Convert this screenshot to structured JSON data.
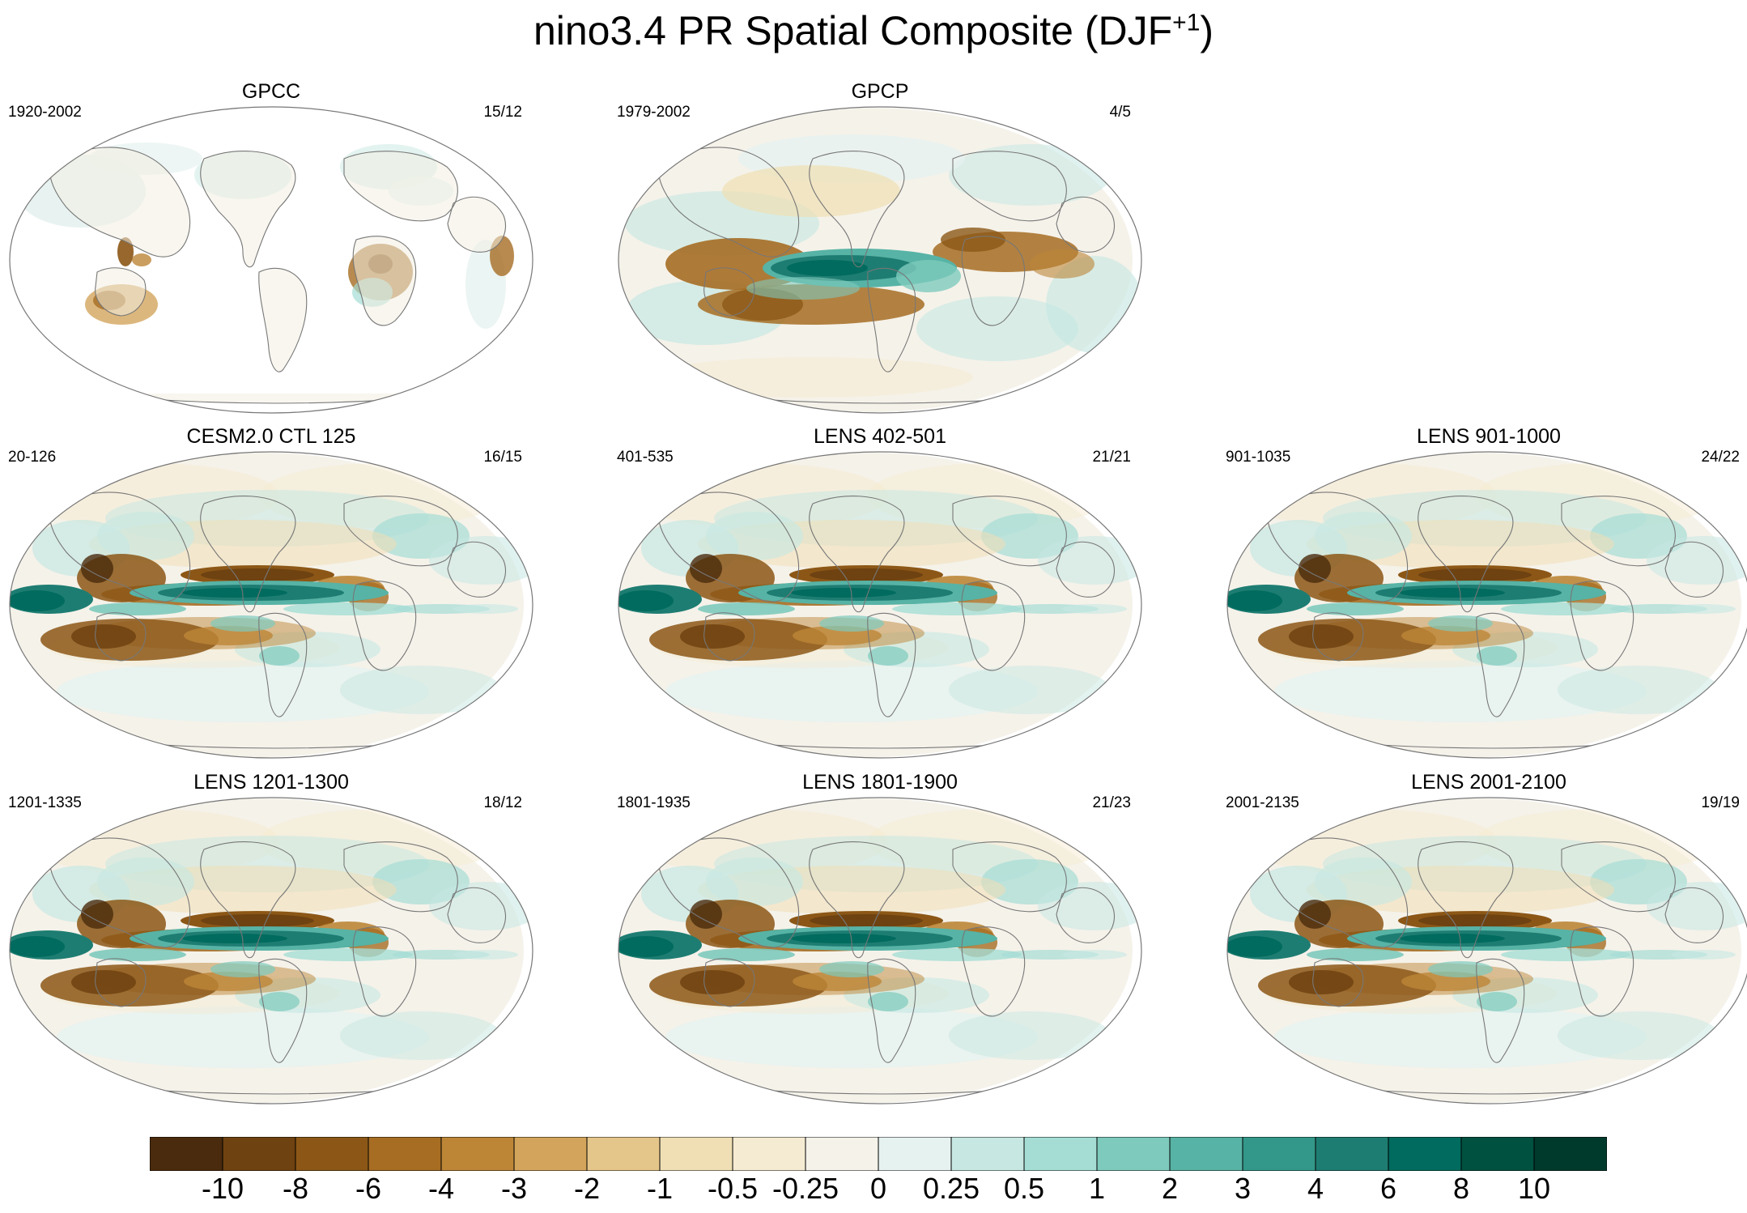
{
  "title": {
    "main": "nino3.4 PR Spatial Composite (DJF",
    "sup": "+1",
    "close": ")"
  },
  "panels": [
    {
      "title": "GPCC",
      "period": "1920-2002",
      "ratio": "15/12",
      "variant": "obs-land"
    },
    {
      "title": "GPCP",
      "period": "1979-2002",
      "ratio": "4/5",
      "variant": "obs"
    },
    {
      "title": "CESM2.0 CTL 125",
      "period": "20-126",
      "ratio": "16/15",
      "variant": "model"
    },
    {
      "title": "LENS 402-501",
      "period": "401-535",
      "ratio": "21/21",
      "variant": "model"
    },
    {
      "title": "LENS 901-1000",
      "period": "901-1035",
      "ratio": "24/22",
      "variant": "model"
    },
    {
      "title": "LENS 1201-1300",
      "period": "1201-1335",
      "ratio": "18/12",
      "variant": "model"
    },
    {
      "title": "LENS 1801-1900",
      "period": "1801-1935",
      "ratio": "21/23",
      "variant": "model"
    },
    {
      "title": "LENS 2001-2100",
      "period": "2001-2135",
      "ratio": "19/19",
      "variant": "model"
    }
  ],
  "colorbar": {
    "labels": [
      "-10",
      "-8",
      "-6",
      "-4",
      "-3",
      "-2",
      "-1",
      "-0.5",
      "-0.25",
      "0",
      "0.25",
      "0.5",
      "1",
      "2",
      "3",
      "4",
      "6",
      "8",
      "10"
    ],
    "colors": [
      "#4a2b0d",
      "#6e4211",
      "#8c5716",
      "#a66d23",
      "#bd8637",
      "#d3a55c",
      "#e5c68a",
      "#f0dfb4",
      "#f5ebd2",
      "#f5f2ea",
      "#e6f2f0",
      "#c7e8e2",
      "#a5ddd4",
      "#7ecabd",
      "#57b3a5",
      "#339889",
      "#1e7d72",
      "#006b5e",
      "#00513f",
      "#003a2c"
    ]
  }
}
